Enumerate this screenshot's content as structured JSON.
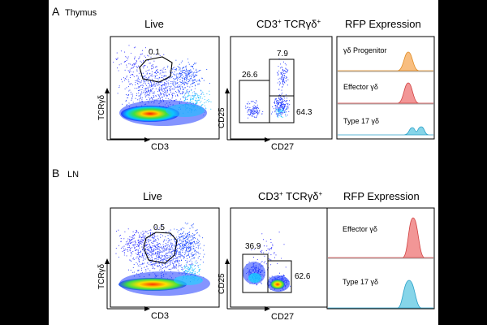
{
  "panels": [
    {
      "letter": "A",
      "tissue": "Thymus",
      "live": {
        "title": "Live",
        "x_axis": "CD3",
        "y_axis": "TCRγδ",
        "gate_value": "0.1"
      },
      "cd3tcr": {
        "title_main": "CD3",
        "title_sup1": "+",
        "title_mid": " TCRγδ",
        "title_sup2": "+",
        "x_axis": "CD27",
        "y_axis": "CD25",
        "gates": [
          {
            "value": "26.6"
          },
          {
            "value": "7.9"
          },
          {
            "value": "64.3"
          }
        ]
      },
      "rfp": {
        "title": "RFP Expression",
        "tracks": [
          {
            "label": "γδ Progenitor",
            "color": "#f5a24a"
          },
          {
            "label": "Effector γδ",
            "color": "#ec6a6a"
          },
          {
            "label": "Type 17 γδ",
            "color": "#52c3e0"
          }
        ]
      }
    },
    {
      "letter": "B",
      "tissue": "LN",
      "live": {
        "title": "Live",
        "x_axis": "CD3",
        "y_axis": "TCRγδ",
        "gate_value": "0.5"
      },
      "cd3tcr": {
        "title_main": "CD3",
        "title_sup1": "+",
        "title_mid": " TCRγδ",
        "title_sup2": "+",
        "x_axis": "CD27",
        "y_axis": "CD25",
        "gates": [
          {
            "value": "36.9"
          },
          {
            "value": "62.6"
          }
        ]
      },
      "rfp": {
        "title": "RFP Expression",
        "tracks": [
          {
            "label": "Effector γδ",
            "color": "#ec6a6a"
          },
          {
            "label": "Type 17 γδ",
            "color": "#52c3e0"
          }
        ]
      }
    }
  ],
  "chart_data": [
    {
      "type": "scatter",
      "panel": "A",
      "title": "Live",
      "xlabel": "CD3",
      "ylabel": "TCRγδ",
      "gate_percent": [
        0.1
      ]
    },
    {
      "type": "scatter",
      "panel": "A",
      "title": "CD3+ TCRγδ+",
      "xlabel": "CD27",
      "ylabel": "CD25",
      "gate_percent": [
        26.6,
        7.9,
        64.3
      ]
    },
    {
      "type": "area",
      "panel": "A",
      "title": "RFP Expression",
      "series": [
        {
          "name": "γδ Progenitor"
        },
        {
          "name": "Effector γδ"
        },
        {
          "name": "Type 17 γδ"
        }
      ]
    },
    {
      "type": "scatter",
      "panel": "B",
      "title": "Live",
      "xlabel": "CD3",
      "ylabel": "TCRγδ",
      "gate_percent": [
        0.5
      ]
    },
    {
      "type": "scatter",
      "panel": "B",
      "title": "CD3+ TCRγδ+",
      "xlabel": "CD27",
      "ylabel": "CD25",
      "gate_percent": [
        36.9,
        62.6
      ]
    },
    {
      "type": "area",
      "panel": "B",
      "title": "RFP Expression",
      "series": [
        {
          "name": "Effector γδ"
        },
        {
          "name": "Type 17 γδ"
        }
      ]
    }
  ]
}
